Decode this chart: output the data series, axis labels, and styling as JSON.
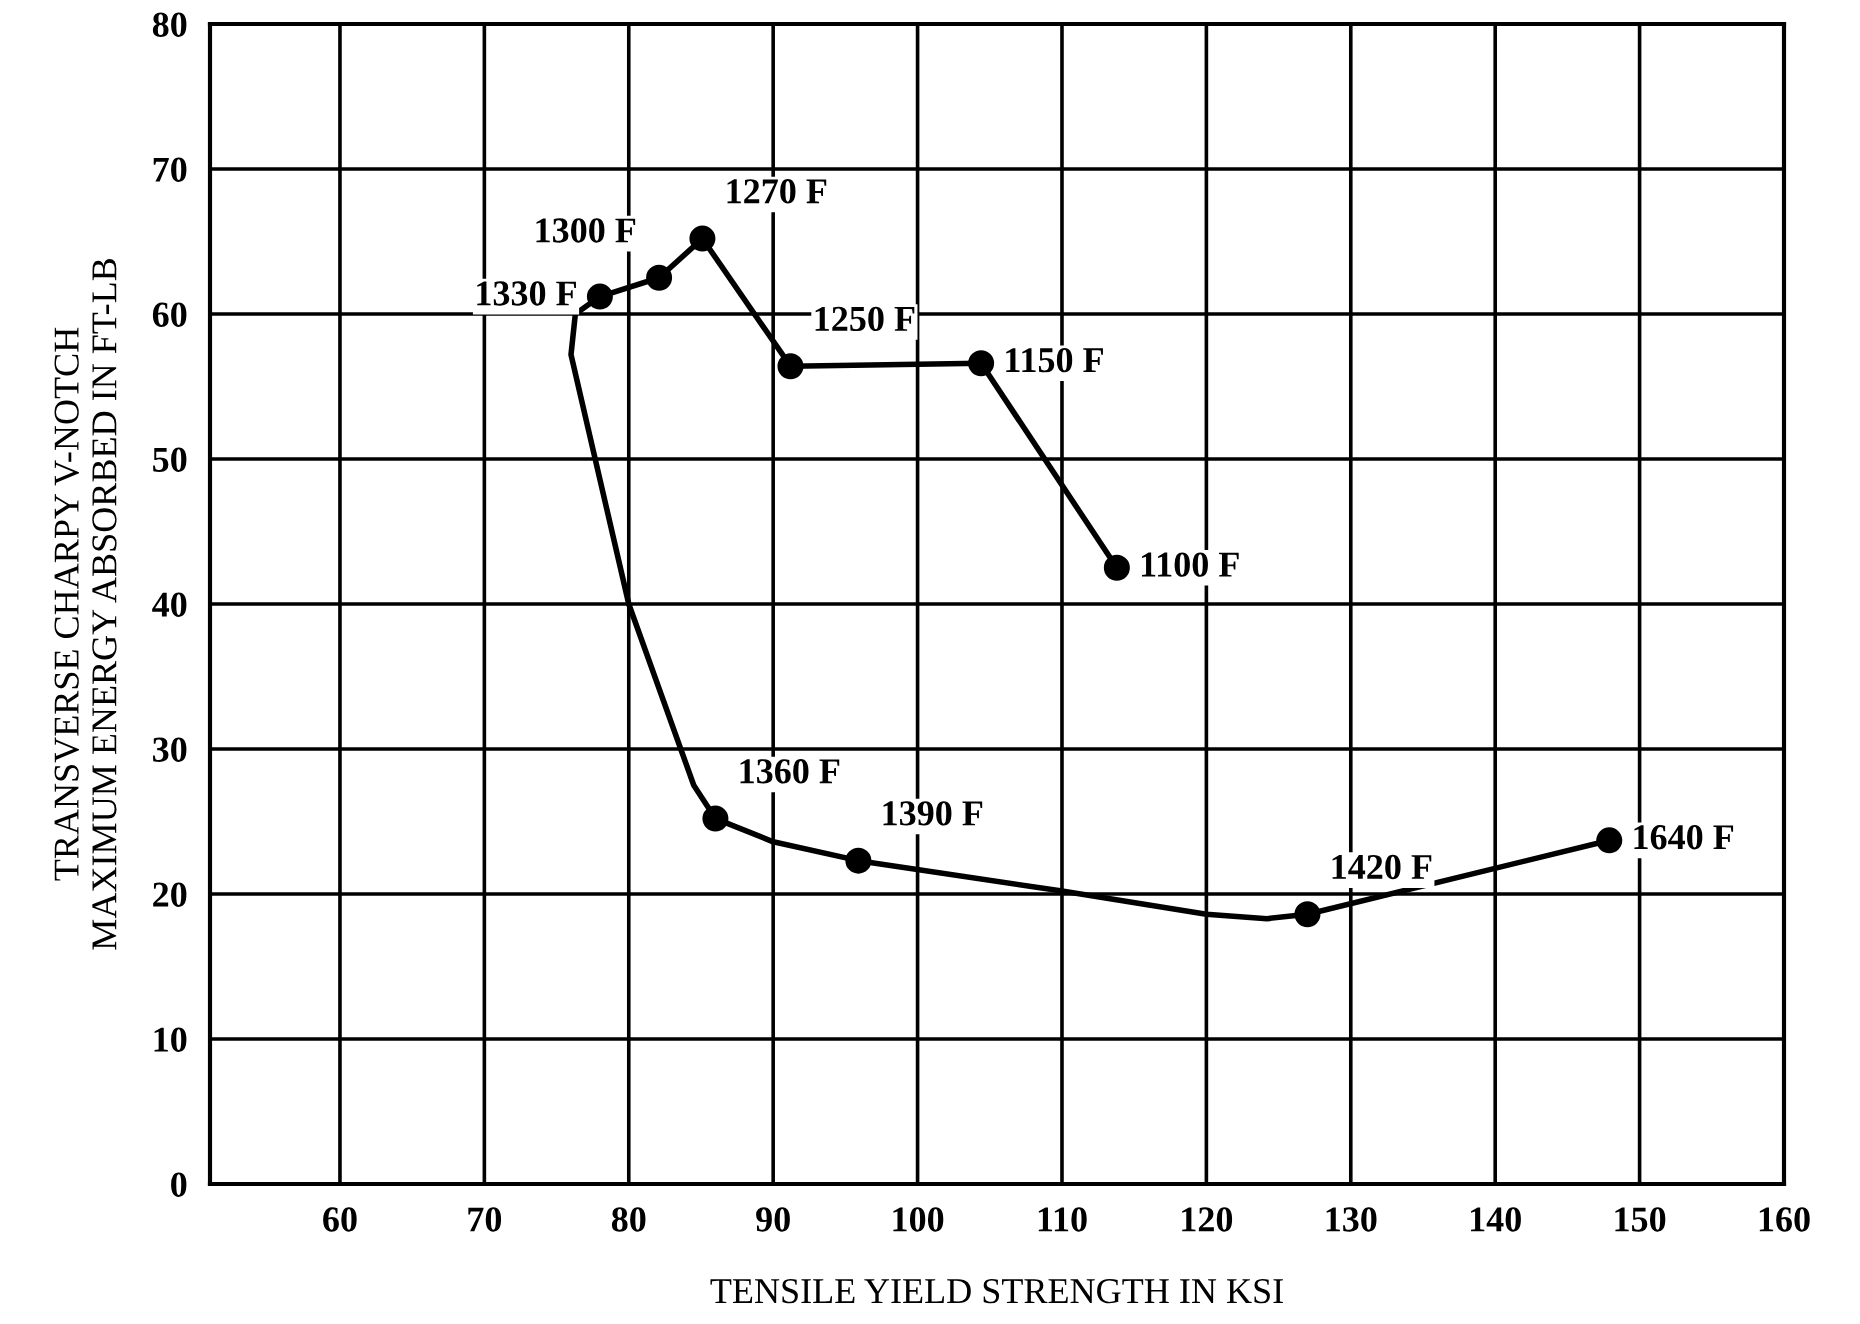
{
  "chart_data": {
    "type": "line",
    "xlabel": "TENSILE YIELD STRENGTH IN KSI",
    "ylabel": "TRANSVERSE CHARPY V-NOTCH\nMAXIMUM ENERGY ABSORBED IN FT-LB",
    "series": [
      {
        "color": "#000000",
        "marker": "none",
        "x": [
          113.8,
          104.4,
          91.2,
          85.1,
          82.1,
          78.0,
          76.3,
          76.0,
          80,
          84.5,
          86.0,
          90,
          95.9,
          110,
          120,
          124.2,
          127.0,
          147.9
        ],
        "values": [
          42.5,
          56.6,
          56.4,
          65.2,
          62.5,
          61.2,
          60,
          57.2,
          40,
          27.5,
          25.2,
          23.6,
          22.3,
          20.2,
          18.6,
          18.3,
          18.6,
          23.7
        ]
      },
      {
        "type": "scatter",
        "color": "#000000",
        "marker": "circle",
        "x": [
          113.8,
          104.4,
          91.2,
          85.1,
          82.1,
          78.0,
          86.0,
          95.9,
          127.0,
          147.9
        ],
        "values": [
          42.5,
          56.6,
          56.4,
          65.2,
          62.5,
          61.2,
          25.2,
          22.3,
          18.6,
          23.7
        ]
      }
    ],
    "annotations": [
      {
        "text": "1100 F",
        "x": 113.8,
        "y": 42.5
      },
      {
        "text": "1150 F",
        "x": 104.4,
        "y": 56.6
      },
      {
        "text": "1250 F",
        "x": 91.2,
        "y": 56.4
      },
      {
        "text": "1270 F",
        "x": 85.1,
        "y": 65.2
      },
      {
        "text": "1300 F",
        "x": 82.1,
        "y": 62.5
      },
      {
        "text": "1330 F",
        "x": 78.0,
        "y": 61.2
      },
      {
        "text": "1360 F",
        "x": 86.0,
        "y": 25.2
      },
      {
        "text": "1390 F",
        "x": 95.9,
        "y": 22.3
      },
      {
        "text": "1420 F",
        "x": 127.0,
        "y": 18.6
      },
      {
        "text": "1640 F",
        "x": 147.9,
        "y": 23.7
      }
    ],
    "xlim": [
      51,
      160
    ],
    "xticks": [
      60,
      70,
      80,
      90,
      100,
      110,
      120,
      130,
      140,
      150,
      160
    ],
    "ylim": [
      0,
      80
    ],
    "yticks": [
      0,
      10,
      20,
      30,
      40,
      50,
      60,
      70,
      80
    ],
    "grid": true,
    "legend": false
  }
}
